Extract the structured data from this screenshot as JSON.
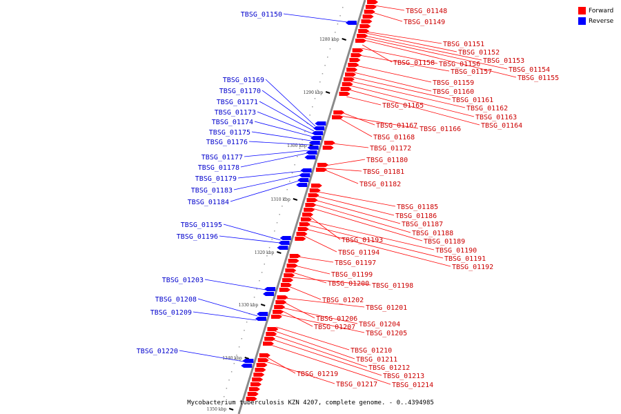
{
  "legend": [
    {
      "label": "Forward",
      "color": "#ff0000"
    },
    {
      "label": "Reverse",
      "color": "#0000ff"
    }
  ],
  "caption": "Mycobacterium tuberculosis KZN 4207, complete genome. - 0..4394985",
  "ticks": [
    "1280 kbp",
    "1290 kbp",
    "1300 kbp",
    "1310 kbp",
    "1320 kbp",
    "1330 kbp",
    "1340 kbp",
    "1350 kbp"
  ],
  "forward_labels": [
    "TBSG_01148",
    "TBSG_01149",
    "TBSG_01151",
    "TBSG_01152",
    "TBSG_01153",
    "TBSG_01154",
    "TBSG_01155",
    "TBSG_01158",
    "TBSG_01156",
    "TBSG_01157",
    "TBSG_01159",
    "TBSG_01160",
    "TBSG_01161",
    "TBSG_01162",
    "TBSG_01163",
    "TBSG_01164",
    "TBSG_01165",
    "TBSG_01167",
    "TBSG_01166",
    "TBSG_01168",
    "TBSG_01172",
    "TBSG_01180",
    "TBSG_01181",
    "TBSG_01182",
    "TBSG_01185",
    "TBSG_01186",
    "TBSG_01187",
    "TBSG_01188",
    "TBSG_01189",
    "TBSG_01193",
    "TBSG_01190",
    "TBSG_01194",
    "TBSG_01191",
    "TBSG_01192",
    "TBSG_01197",
    "TBSG_01199",
    "TBSG_01200",
    "TBSG_01198",
    "TBSG_01202",
    "TBSG_01201",
    "TBSG_01206",
    "TBSG_01204",
    "TBSG_01207",
    "TBSG_01205",
    "TBSG_01210",
    "TBSG_01211",
    "TBSG_01212",
    "TBSG_01213",
    "TBSG_01219",
    "TBSG_01217",
    "TBSG_01214"
  ],
  "reverse_labels": [
    "TBSG_01150",
    "TBSG_01169",
    "TBSG_01170",
    "TBSG_01171",
    "TBSG_01173",
    "TBSG_01174",
    "TBSG_01175",
    "TBSG_01176",
    "TBSG_01177",
    "TBSG_01178",
    "TBSG_01179",
    "TBSG_01183",
    "TBSG_01184",
    "TBSG_01195",
    "TBSG_01196",
    "TBSG_01203",
    "TBSG_01208",
    "TBSG_01209",
    "TBSG_01220"
  ]
}
